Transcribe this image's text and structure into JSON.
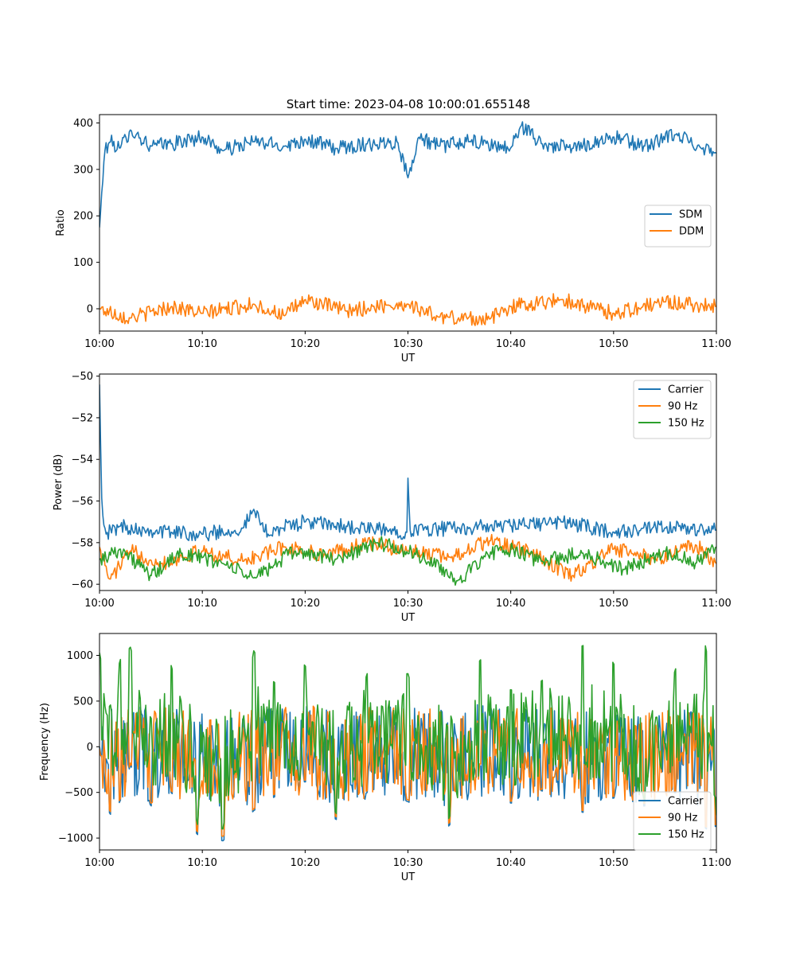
{
  "figure": {
    "title": "Start time: 2023-04-08 10:00:01.655148"
  },
  "colors": {
    "blue": "#1f77b4",
    "orange": "#ff7f0e",
    "green": "#2ca02c"
  },
  "chart_data": [
    {
      "type": "line",
      "title": "Start time: 2023-04-08 10:00:01.655148",
      "xlabel": "UT",
      "ylabel": "Ratio",
      "xlim": [
        "10:00",
        "11:00"
      ],
      "ylim": [
        -48,
        418
      ],
      "x_ticks": [
        "10:00",
        "10:10",
        "10:20",
        "10:30",
        "10:40",
        "10:50",
        "11:00"
      ],
      "y_ticks": [
        0,
        100,
        200,
        300,
        400
      ],
      "legend_position": "center-right",
      "grid": false,
      "series": [
        {
          "name": "SDM",
          "color": "#1f77b4",
          "x": [
            "10:00",
            "10:00.5",
            "10:01",
            "10:02",
            "10:03",
            "10:05",
            "10:07",
            "10:10",
            "10:12",
            "10:15",
            "10:18",
            "10:20",
            "10:23",
            "10:26",
            "10:29",
            "10:30",
            "10:31",
            "10:33",
            "10:36",
            "10:40",
            "10:41",
            "10:43",
            "10:46",
            "10:50",
            "10:53",
            "10:56",
            "11:00"
          ],
          "values": [
            175,
            340,
            360,
            345,
            385,
            350,
            355,
            370,
            340,
            360,
            350,
            365,
            345,
            355,
            360,
            282,
            370,
            350,
            360,
            345,
            395,
            355,
            345,
            370,
            350,
            375,
            335
          ]
        },
        {
          "name": "DDM",
          "color": "#ff7f0e",
          "x": [
            "10:00",
            "10:03",
            "10:07",
            "10:10",
            "10:15",
            "10:18",
            "10:20",
            "10:24",
            "10:28",
            "10:30",
            "10:33",
            "10:38",
            "10:40",
            "10:45",
            "10:50",
            "10:55",
            "11:00"
          ],
          "values": [
            0,
            -20,
            5,
            -10,
            10,
            -15,
            20,
            -5,
            8,
            10,
            -18,
            -22,
            5,
            20,
            -10,
            15,
            5
          ]
        }
      ]
    },
    {
      "type": "line",
      "xlabel": "UT",
      "ylabel": "Power (dB)",
      "xlim": [
        "10:00",
        "11:00"
      ],
      "ylim": [
        -60.3,
        -49.9
      ],
      "x_ticks": [
        "10:00",
        "10:10",
        "10:20",
        "10:30",
        "10:40",
        "10:50",
        "11:00"
      ],
      "y_ticks": [
        -60,
        -58,
        -56,
        -54,
        -52,
        -50
      ],
      "legend_position": "top-right",
      "grid": false,
      "series": [
        {
          "name": "Carrier",
          "color": "#1f77b4",
          "x": [
            "10:00",
            "10:00.2",
            "10:00.6",
            "10:02",
            "10:05",
            "10:10",
            "10:14",
            "10:15",
            "10:16",
            "10:20",
            "10:25",
            "10:29.9",
            "10:30",
            "10:30.2",
            "10:35",
            "10:40",
            "10:45",
            "10:50",
            "10:55",
            "11:00"
          ],
          "values": [
            -50.4,
            -55.8,
            -57.6,
            -57.2,
            -57.4,
            -57.6,
            -57.3,
            -56.4,
            -57.5,
            -57.0,
            -57.3,
            -57.5,
            -54.9,
            -57.4,
            -57.3,
            -57.2,
            -57.0,
            -57.5,
            -57.3,
            -57.4
          ]
        },
        {
          "name": "90 Hz",
          "color": "#ff7f0e",
          "x": [
            "10:00",
            "10:01",
            "10:03",
            "10:06",
            "10:10",
            "10:14",
            "10:18",
            "10:22",
            "10:26",
            "10:30",
            "10:34",
            "10:38",
            "10:42",
            "10:46",
            "10:50",
            "10:54",
            "10:58",
            "11:00"
          ],
          "values": [
            -58.2,
            -59.8,
            -58.4,
            -59.0,
            -58.4,
            -58.9,
            -58.2,
            -58.6,
            -58.0,
            -58.4,
            -58.7,
            -57.9,
            -58.5,
            -59.6,
            -58.3,
            -58.8,
            -58.1,
            -59.0
          ]
        },
        {
          "name": "150 Hz",
          "color": "#2ca02c",
          "x": [
            "10:00",
            "10:02",
            "10:05",
            "10:08",
            "10:12",
            "10:15",
            "10:19",
            "10:23",
            "10:27",
            "10:31",
            "10:35",
            "10:39",
            "10:43",
            "10:47",
            "10:51",
            "10:55",
            "10:58",
            "11:00"
          ],
          "values": [
            -58.8,
            -58.3,
            -59.6,
            -58.5,
            -59.0,
            -59.7,
            -58.4,
            -58.8,
            -58.0,
            -58.6,
            -59.8,
            -58.2,
            -58.9,
            -58.5,
            -59.3,
            -58.4,
            -59.0,
            -58.2
          ]
        }
      ]
    },
    {
      "type": "line",
      "xlabel": "UT",
      "ylabel": "Frequency (Hz)",
      "xlim": [
        "10:00",
        "11:00"
      ],
      "ylim": [
        -1130,
        1240
      ],
      "x_ticks": [
        "10:00",
        "10:10",
        "10:20",
        "10:30",
        "10:40",
        "10:50",
        "11:00"
      ],
      "y_ticks": [
        -1000,
        -500,
        0,
        500,
        1000
      ],
      "legend_position": "lower-right",
      "grid": false,
      "series": [
        {
          "name": "Carrier",
          "color": "#1f77b4",
          "x": [
            "10:00",
            "10:01",
            "10:02",
            "10:03",
            "10:05",
            "10:07",
            "10:09.5",
            "10:12",
            "10:15",
            "10:17",
            "10:20",
            "10:23",
            "10:26",
            "10:30",
            "10:34",
            "10:37",
            "10:40",
            "10:43",
            "10:47",
            "10:50",
            "10:53",
            "10:56",
            "10:59",
            "11:00"
          ],
          "values": [
            0,
            -750,
            -600,
            -200,
            -650,
            -500,
            -960,
            -1030,
            -700,
            -550,
            -380,
            -800,
            -500,
            -600,
            -870,
            -200,
            -620,
            -480,
            -720,
            -560,
            -650,
            -500,
            -900,
            -870
          ]
        },
        {
          "name": "90 Hz",
          "color": "#ff7f0e",
          "x": [
            "10:00",
            "10:01",
            "10:02",
            "10:03",
            "10:05",
            "10:07",
            "10:09.5",
            "10:12",
            "10:15",
            "10:17",
            "10:20",
            "10:23",
            "10:26",
            "10:30",
            "10:34",
            "10:37",
            "10:40",
            "10:43",
            "10:47",
            "10:50",
            "10:53",
            "10:56",
            "10:59",
            "11:00"
          ],
          "values": [
            -20,
            -720,
            -580,
            -180,
            -620,
            -480,
            -930,
            -980,
            -680,
            -520,
            -360,
            -770,
            -480,
            -580,
            -840,
            -180,
            -600,
            -460,
            -700,
            -540,
            -620,
            -480,
            -880,
            -850
          ]
        },
        {
          "name": "150 Hz",
          "color": "#2ca02c",
          "x": [
            "10:00",
            "10:01",
            "10:02",
            "10:03",
            "10:05",
            "10:07",
            "10:09.5",
            "10:12",
            "10:15",
            "10:17",
            "10:20",
            "10:23",
            "10:26",
            "10:30",
            "10:34",
            "10:37",
            "10:40",
            "10:43",
            "10:47",
            "10:50",
            "10:53",
            "10:56",
            "10:59",
            "11:00"
          ],
          "values": [
            1030,
            420,
            950,
            1090,
            300,
            900,
            -850,
            -900,
            1050,
            700,
            900,
            -750,
            800,
            800,
            -800,
            960,
            620,
            720,
            1110,
            920,
            -600,
            850,
            1110,
            -750
          ]
        }
      ]
    }
  ]
}
